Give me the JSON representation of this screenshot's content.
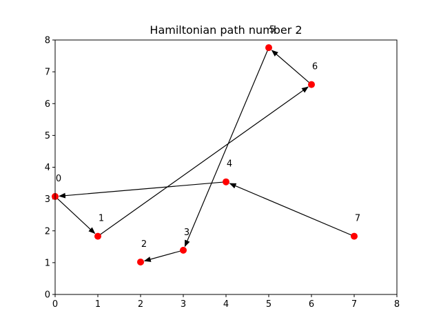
{
  "chart_data": {
    "type": "scatter",
    "title": "Hamiltonian path number 2",
    "xlabel": "",
    "ylabel": "",
    "xlim": [
      0,
      8
    ],
    "ylim": [
      0,
      8
    ],
    "x_ticks": [
      0,
      1,
      2,
      3,
      4,
      5,
      6,
      7,
      8
    ],
    "y_ticks": [
      0,
      1,
      2,
      3,
      4,
      5,
      6,
      7,
      8
    ],
    "grid": false,
    "point_color": "#ff0000",
    "edge_color": "#000000",
    "points": [
      {
        "label": "0",
        "x": 0.0,
        "y": 3.08
      },
      {
        "label": "1",
        "x": 1.0,
        "y": 1.83
      },
      {
        "label": "2",
        "x": 2.0,
        "y": 1.02
      },
      {
        "label": "3",
        "x": 3.0,
        "y": 1.39
      },
      {
        "label": "4",
        "x": 4.0,
        "y": 3.54
      },
      {
        "label": "5",
        "x": 5.0,
        "y": 7.76
      },
      {
        "label": "6",
        "x": 6.0,
        "y": 6.6
      },
      {
        "label": "7",
        "x": 7.0,
        "y": 1.83
      }
    ],
    "path_order": [
      7,
      4,
      0,
      1,
      6,
      5,
      3,
      2
    ]
  }
}
